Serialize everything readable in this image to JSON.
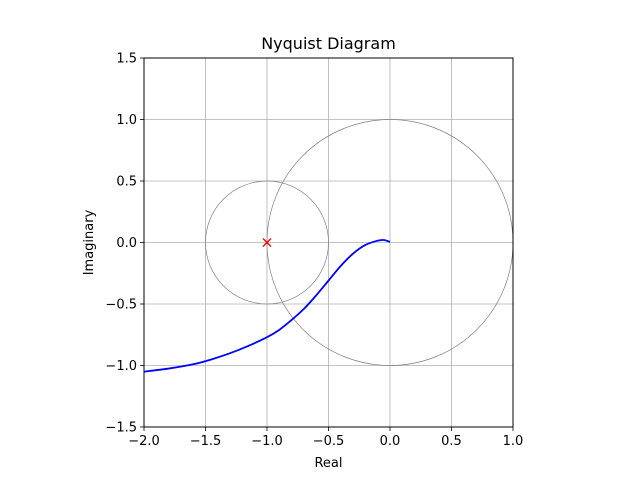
{
  "chart_data": {
    "type": "line",
    "title": "Nyquist Diagram",
    "xlabel": "Real",
    "ylabel": "Imaginary",
    "xlim": [
      -2.0,
      1.0
    ],
    "ylim": [
      -1.5,
      1.5
    ],
    "xticks": [
      -2.0,
      -1.5,
      -1.0,
      -0.5,
      0.0,
      0.5,
      1.0
    ],
    "yticks": [
      -1.5,
      -1.0,
      -0.5,
      0.0,
      0.5,
      1.0,
      1.5
    ],
    "xtick_labels": [
      "−2.0",
      "−1.5",
      "−1.0",
      "−0.5",
      "0.0",
      "0.5",
      "1.0"
    ],
    "ytick_labels": [
      "−1.5",
      "−1.0",
      "−0.5",
      "0.0",
      "0.5",
      "1.0",
      "1.5"
    ],
    "grid": true,
    "series": [
      {
        "color": "#0000ff",
        "x": [
          -2.0,
          -1.8,
          -1.6,
          -1.45,
          -1.3,
          -1.15,
          -1.0,
          -0.9,
          -0.8,
          -0.7,
          -0.6,
          -0.5,
          -0.4,
          -0.3,
          -0.2,
          -0.1,
          -0.05,
          0.0
        ],
        "y": [
          -1.05,
          -1.025,
          -0.99,
          -0.95,
          -0.9,
          -0.84,
          -0.77,
          -0.71,
          -0.63,
          -0.54,
          -0.43,
          -0.31,
          -0.19,
          -0.09,
          -0.02,
          0.015,
          0.02,
          0.005
        ]
      }
    ],
    "reference_circles": [
      {
        "color": "#808080",
        "center": [
          0.0,
          0.0
        ],
        "radius": 1.0
      },
      {
        "color": "#808080",
        "center": [
          -1.0,
          0.0
        ],
        "radius": 0.5
      }
    ],
    "critical_point": {
      "x": -1.0,
      "y": 0.0,
      "marker": "x",
      "color": "#ff0000"
    },
    "grid_color": "#b0b0b0"
  }
}
